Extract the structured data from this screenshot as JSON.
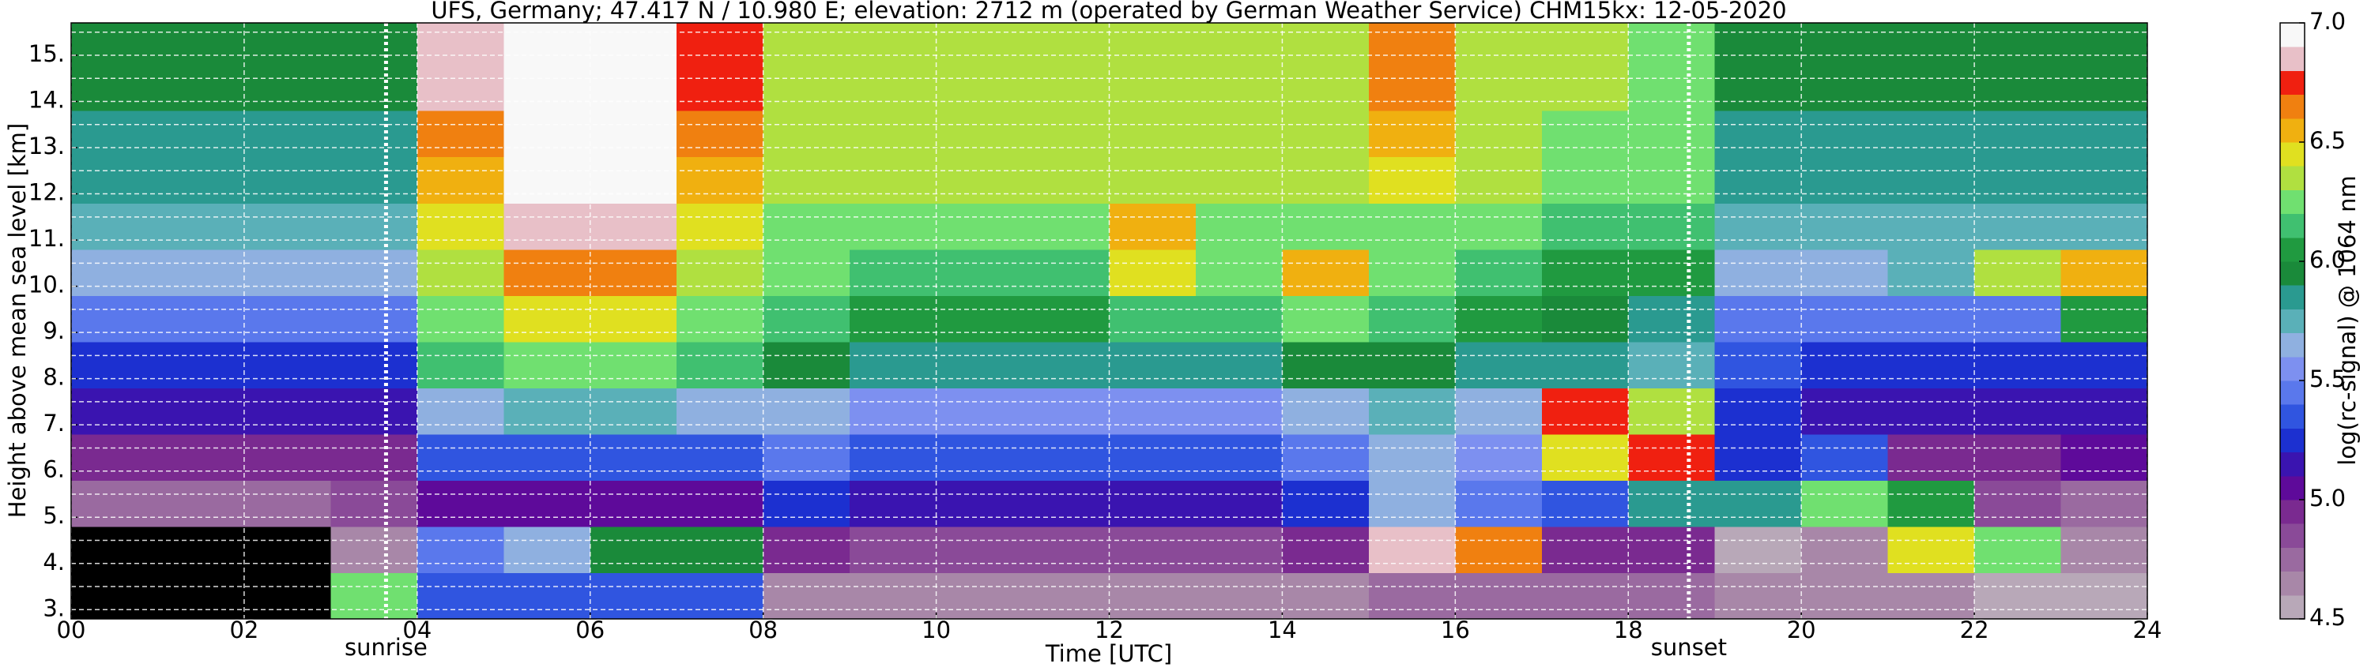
{
  "chart_data": {
    "type": "heatmap",
    "title": "UFS, Germany; 47.417 N / 10.980 E; elevation: 2712 m  (operated by German Weather Service)    CHM15kx: 12-05-2020",
    "x_label": "Time [UTC]",
    "y_label": "Height above mean sea level [km]",
    "xlim": [
      0,
      24
    ],
    "ylim": [
      2.8,
      15.7
    ],
    "xticks": [
      {
        "value": 0,
        "label": "00"
      },
      {
        "value": 2,
        "label": "02"
      },
      {
        "value": 4,
        "label": "04"
      },
      {
        "value": 6,
        "label": "06"
      },
      {
        "value": 8,
        "label": "08"
      },
      10,
      12,
      14,
      16,
      18,
      20,
      22,
      24
    ],
    "yticks": [
      {
        "value": 3,
        "label": "3."
      },
      {
        "value": 4,
        "label": "4."
      },
      {
        "value": 5,
        "label": "5."
      },
      {
        "value": 6,
        "label": "6."
      },
      {
        "value": 7,
        "label": "7."
      },
      {
        "value": 8,
        "label": "8."
      },
      {
        "value": 9,
        "label": "9."
      },
      {
        "value": 10,
        "label": "10."
      },
      {
        "value": 11,
        "label": "11."
      },
      {
        "value": 12,
        "label": "12."
      },
      {
        "value": 13,
        "label": "13."
      },
      {
        "value": 14,
        "label": "14."
      },
      {
        "value": 15,
        "label": "15."
      }
    ],
    "y_minor_grid": [
      3.5,
      4.5,
      5.5,
      6.5,
      7.5,
      8.5,
      9.5,
      10.5,
      11.5,
      12.5,
      13.5,
      14.5,
      15.5
    ],
    "grid": true,
    "x_bins": [
      0,
      1,
      2,
      3,
      4,
      5,
      6,
      7,
      8,
      9,
      10,
      11,
      12,
      13,
      14,
      15,
      16,
      17,
      18,
      19,
      20,
      21,
      22,
      23,
      24
    ],
    "y_bins": [
      2.8,
      3.8,
      4.8,
      5.8,
      6.8,
      7.8,
      8.8,
      9.8,
      10.8,
      11.8,
      12.8,
      13.8,
      14.8,
      15.7
    ],
    "z": [
      [
        4.4,
        4.4,
        4.4,
        6.2,
        5.3,
        5.3,
        5.3,
        5.3,
        4.6,
        4.6,
        4.6,
        4.6,
        4.6,
        4.6,
        4.6,
        4.7,
        4.7,
        4.7,
        4.7,
        4.6,
        4.6,
        4.6,
        4.5,
        4.5
      ],
      [
        4.4,
        4.4,
        4.4,
        4.6,
        5.4,
        5.6,
        5.9,
        5.9,
        4.9,
        4.8,
        4.8,
        4.8,
        4.8,
        4.8,
        4.9,
        6.8,
        6.6,
        4.9,
        4.9,
        4.5,
        4.6,
        6.4,
        6.2,
        4.6
      ],
      [
        4.7,
        4.7,
        4.7,
        4.8,
        5.0,
        5.0,
        5.0,
        5.0,
        5.2,
        5.1,
        5.1,
        5.1,
        5.1,
        5.1,
        5.2,
        5.6,
        5.4,
        5.3,
        5.8,
        5.8,
        6.2,
        6.0,
        4.8,
        4.7
      ],
      [
        4.9,
        4.9,
        4.9,
        4.9,
        5.3,
        5.3,
        5.3,
        5.3,
        5.4,
        5.3,
        5.3,
        5.3,
        5.3,
        5.3,
        5.4,
        5.6,
        5.5,
        6.4,
        6.7,
        5.2,
        5.3,
        4.9,
        4.9,
        5.0
      ],
      [
        5.1,
        5.1,
        5.1,
        5.1,
        5.6,
        5.7,
        5.7,
        5.6,
        5.6,
        5.5,
        5.5,
        5.5,
        5.5,
        5.5,
        5.6,
        5.7,
        5.6,
        6.7,
        6.3,
        5.2,
        5.1,
        5.1,
        5.1,
        5.1
      ],
      [
        5.2,
        5.2,
        5.2,
        5.2,
        6.1,
        6.2,
        6.2,
        6.1,
        5.9,
        5.8,
        5.8,
        5.8,
        5.8,
        5.8,
        5.9,
        5.9,
        5.8,
        5.8,
        5.7,
        5.3,
        5.2,
        5.2,
        5.2,
        5.2
      ],
      [
        5.4,
        5.4,
        5.4,
        5.4,
        6.2,
        6.4,
        6.4,
        6.2,
        6.1,
        6.0,
        6.0,
        6.0,
        6.1,
        6.1,
        6.2,
        6.1,
        6.0,
        5.9,
        5.8,
        5.4,
        5.4,
        5.4,
        5.4,
        6.0
      ],
      [
        5.6,
        5.6,
        5.6,
        5.6,
        6.3,
        6.6,
        6.6,
        6.3,
        6.2,
        6.1,
        6.1,
        6.1,
        6.4,
        6.2,
        6.5,
        6.2,
        6.1,
        6.0,
        6.0,
        5.6,
        5.6,
        5.7,
        6.3,
        6.5
      ],
      [
        5.7,
        5.7,
        5.7,
        5.7,
        6.4,
        6.8,
        6.8,
        6.4,
        6.2,
        6.2,
        6.2,
        6.2,
        6.5,
        6.2,
        6.2,
        6.2,
        6.2,
        6.1,
        6.1,
        5.7,
        5.7,
        5.7,
        5.7,
        5.7
      ],
      [
        5.8,
        5.8,
        5.8,
        5.8,
        6.5,
        6.9,
        6.9,
        6.5,
        6.3,
        6.3,
        6.3,
        6.3,
        6.3,
        6.3,
        6.3,
        6.4,
        6.3,
        6.2,
        6.2,
        5.8,
        5.8,
        5.8,
        5.8,
        5.8
      ],
      [
        5.8,
        5.8,
        5.8,
        5.8,
        6.6,
        6.9,
        6.9,
        6.6,
        6.3,
        6.3,
        6.3,
        6.3,
        6.3,
        6.3,
        6.3,
        6.5,
        6.3,
        6.2,
        6.2,
        5.8,
        5.8,
        5.8,
        5.8,
        5.8
      ],
      [
        5.9,
        5.9,
        5.9,
        5.9,
        6.8,
        6.9,
        6.9,
        6.7,
        6.3,
        6.3,
        6.3,
        6.3,
        6.3,
        6.3,
        6.3,
        6.6,
        6.3,
        6.3,
        6.2,
        5.9,
        5.9,
        5.9,
        5.9,
        5.9
      ],
      [
        5.9,
        5.9,
        5.9,
        5.9,
        6.8,
        6.9,
        6.9,
        6.7,
        6.3,
        6.3,
        6.3,
        6.3,
        6.3,
        6.3,
        6.3,
        6.6,
        6.3,
        6.3,
        6.2,
        5.9,
        5.9,
        5.9,
        5.9,
        5.9
      ]
    ],
    "annotations": [
      {
        "label": "sunrise",
        "x": 3.64
      },
      {
        "label": "sunset",
        "x": 18.7
      }
    ],
    "colorbar": {
      "label": "log(rc-signal) @ 1064 nm",
      "lim": [
        4.5,
        7.0
      ],
      "ticks": [
        4.5,
        {
          "value": 5,
          "label": "5.0"
        },
        5.5,
        {
          "value": 6,
          "label": "6.0"
        },
        6.5,
        {
          "value": 7,
          "label": "7.0"
        }
      ],
      "under_color": "#000000",
      "colors": [
        "#b8a8b8",
        "#a887a8",
        "#9a6aa0",
        "#8a4a98",
        "#7a2a90",
        "#5e0a9a",
        "#3a14b0",
        "#1c30d0",
        "#3055e0",
        "#5a78ec",
        "#7d90f0",
        "#8fb0e0",
        "#5ab0b8",
        "#2a9a90",
        "#1a8a3a",
        "#209a40",
        "#40c070",
        "#70e070",
        "#b0e040",
        "#e0e020",
        "#f0b010",
        "#f08010",
        "#f02010",
        "#e8c0c8",
        "#f8f8f8"
      ]
    }
  }
}
